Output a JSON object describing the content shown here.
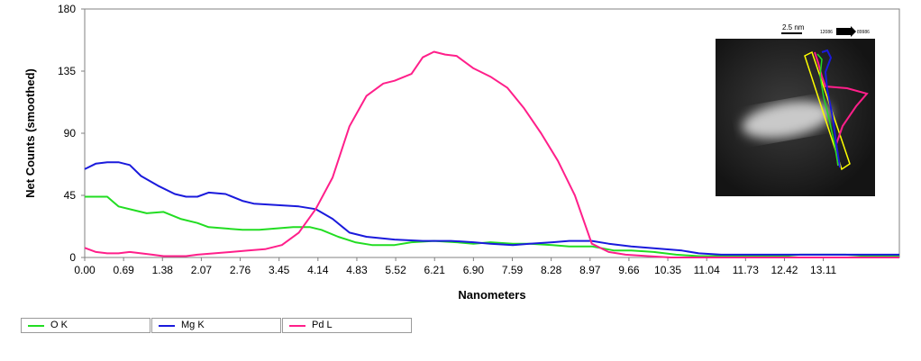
{
  "chart_data": {
    "type": "line",
    "xlabel": "Nanometers",
    "ylabel": "Net Counts (smoothed)",
    "xlim": [
      0,
      14.46
    ],
    "ylim": [
      0,
      180
    ],
    "x_ticks": [
      "0.00",
      "0.69",
      "1.38",
      "2.07",
      "2.76",
      "3.45",
      "4.14",
      "4.83",
      "5.52",
      "6.21",
      "6.90",
      "7.59",
      "8.28",
      "8.97",
      "9.66",
      "10.35",
      "11.04",
      "11.73",
      "12.42",
      "13.11"
    ],
    "y_ticks": [
      "0",
      "45",
      "90",
      "135",
      "180"
    ],
    "grid": false,
    "legend": "bottom-left",
    "series": [
      {
        "name": "O K",
        "color": "#22dd22",
        "x": [
          0,
          0.4,
          0.6,
          0.9,
          1.1,
          1.4,
          1.7,
          2.0,
          2.2,
          2.5,
          2.8,
          3.1,
          3.4,
          3.7,
          4.0,
          4.2,
          4.5,
          4.8,
          5.1,
          5.5,
          5.8,
          6.2,
          6.6,
          6.9,
          7.2,
          7.6,
          7.9,
          8.3,
          8.6,
          9.0,
          9.4,
          9.7,
          10.1,
          10.5,
          10.9,
          11.3,
          11.7,
          12.0,
          12.4,
          12.7,
          13.1,
          13.5,
          13.9,
          14.46
        ],
        "y": [
          44,
          44,
          37,
          34,
          32,
          33,
          28,
          25,
          22,
          21,
          20,
          20,
          21,
          22,
          22,
          20,
          15,
          11,
          9,
          9,
          11,
          12,
          11,
          10,
          11,
          10,
          10,
          9,
          8,
          8,
          5,
          5,
          4,
          2,
          1,
          1,
          1,
          1,
          1,
          2,
          2,
          2,
          1,
          1
        ]
      },
      {
        "name": "Mg K",
        "color": "#1a1adc",
        "x": [
          0,
          0.2,
          0.4,
          0.6,
          0.8,
          1.0,
          1.3,
          1.6,
          1.8,
          2.0,
          2.2,
          2.5,
          2.8,
          3.0,
          3.4,
          3.8,
          4.1,
          4.4,
          4.7,
          5.0,
          5.5,
          6.0,
          6.5,
          6.9,
          7.2,
          7.6,
          7.9,
          8.3,
          8.6,
          9.0,
          9.3,
          9.7,
          10.0,
          10.3,
          10.6,
          10.9,
          11.3,
          11.7,
          12.0,
          12.4,
          12.8,
          13.2,
          13.6,
          14.0,
          14.46
        ],
        "y": [
          64,
          68,
          69,
          69,
          67,
          59,
          52,
          46,
          44,
          44,
          47,
          46,
          41,
          39,
          38,
          37,
          35,
          28,
          18,
          15,
          13,
          12,
          12,
          11,
          10,
          9,
          10,
          11,
          12,
          12,
          10,
          8,
          7,
          6,
          5,
          3,
          2,
          2,
          2,
          2,
          2,
          2,
          2,
          2,
          2
        ]
      },
      {
        "name": "Pd L",
        "color": "#ff1f8a",
        "x": [
          0,
          0.2,
          0.4,
          0.6,
          0.8,
          1.0,
          1.2,
          1.4,
          1.6,
          1.8,
          2.0,
          2.3,
          2.6,
          2.9,
          3.2,
          3.5,
          3.8,
          4.1,
          4.4,
          4.7,
          5.0,
          5.3,
          5.5,
          5.8,
          6.0,
          6.2,
          6.4,
          6.6,
          6.9,
          7.2,
          7.5,
          7.8,
          8.1,
          8.4,
          8.7,
          9.0,
          9.3,
          9.6,
          10.0,
          10.4,
          10.8,
          11.2,
          11.6,
          12.0,
          12.4,
          12.8,
          13.2,
          13.6,
          14.0,
          14.46
        ],
        "y": [
          7,
          4,
          3,
          3,
          4,
          3,
          2,
          1,
          1,
          1,
          2,
          3,
          4,
          5,
          6,
          9,
          18,
          35,
          58,
          95,
          117,
          126,
          128,
          133,
          145,
          149,
          147,
          146,
          137,
          131,
          123,
          108,
          90,
          70,
          45,
          10,
          4,
          2,
          1,
          0,
          0,
          0,
          0,
          0,
          0,
          0,
          0,
          0,
          0,
          0
        ]
      }
    ],
    "inset": {
      "scale_bar_label": "2.5 nm",
      "tiny_left": "12086",
      "tiny_right": "89986"
    }
  }
}
